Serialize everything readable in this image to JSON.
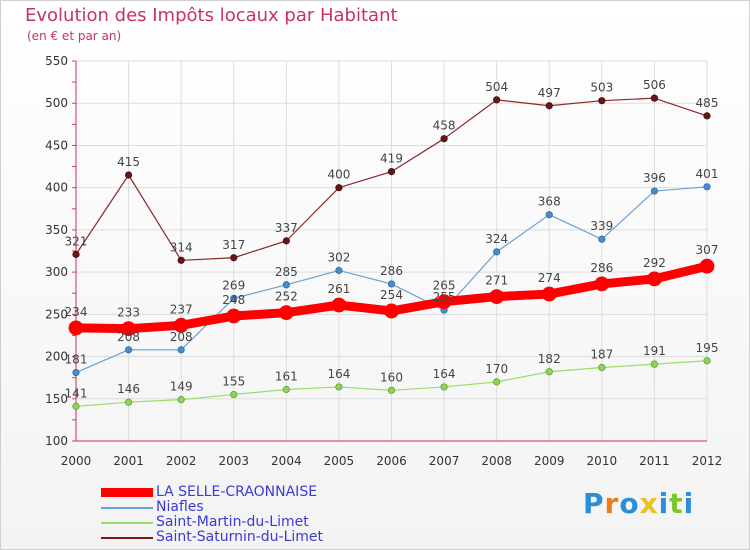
{
  "chart_data": {
    "type": "line",
    "title": "Evolution des Impôts locaux par Habitant",
    "subtitle": "(en € et par an)",
    "xlabel": "",
    "ylabel": "",
    "ylim": [
      100,
      550
    ],
    "yticks": [
      100,
      150,
      200,
      250,
      300,
      350,
      400,
      450,
      500,
      550
    ],
    "categories": [
      "2000",
      "2001",
      "2002",
      "2003",
      "2004",
      "2005",
      "2006",
      "2007",
      "2008",
      "2009",
      "2010",
      "2011",
      "2012"
    ],
    "grid": true,
    "series": [
      {
        "name": "LA SELLE-CRAONNAISE",
        "color": "#ff0000",
        "values": [
          234,
          233,
          237,
          248,
          252,
          261,
          254,
          265,
          271,
          274,
          286,
          292,
          307
        ]
      },
      {
        "name": "Niafles",
        "color": "#6aa2d4",
        "values": [
          181,
          208,
          208,
          269,
          285,
          302,
          286,
          255,
          324,
          368,
          339,
          396,
          401
        ]
      },
      {
        "name": "Saint-Martin-du-Limet",
        "color": "#9ade6a",
        "values": [
          141,
          146,
          149,
          155,
          161,
          164,
          160,
          164,
          170,
          182,
          187,
          191,
          195
        ]
      },
      {
        "name": "Saint-Saturnin-du-Limet",
        "color": "#7a1a1a",
        "values": [
          321,
          415,
          314,
          317,
          337,
          400,
          419,
          458,
          504,
          497,
          503,
          506,
          485
        ]
      }
    ]
  },
  "branding": {
    "logo_text": "Proxiti"
  }
}
